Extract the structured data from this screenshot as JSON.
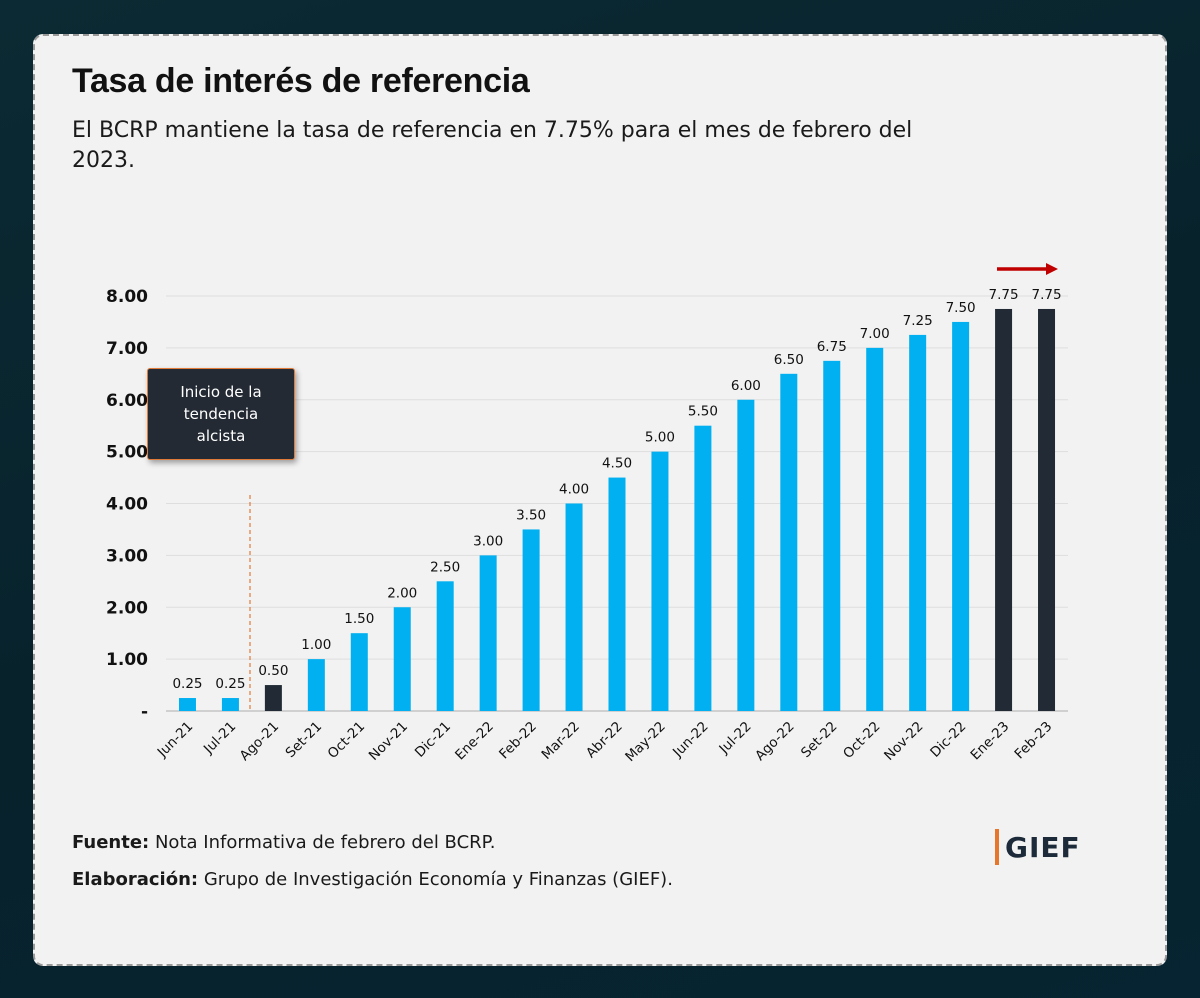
{
  "title": "Tasa de interés de referencia",
  "subtitle": "El BCRP mantiene la tasa de referencia en 7.75% para el mes de febrero del 2023.",
  "callout": {
    "lines": [
      "Inicio de la",
      "tendencia",
      "alcista"
    ]
  },
  "footer": {
    "source_label": "Fuente:",
    "source_text": " Nota Informativa de febrero del BCRP.",
    "credit_label": "Elaboración:",
    "credit_text": " Grupo de Investigación Economía y Finanzas (GIEF)."
  },
  "logo": {
    "text": "GIEF"
  },
  "colors": {
    "bar_blue": "#00b0f0",
    "bar_dark": "#222a35",
    "arrow": "#c00000",
    "callout_border": "#e07b3a"
  },
  "chart_data": {
    "type": "bar",
    "categories": [
      "Jun-21",
      "Jul-21",
      "Ago-21",
      "Set-21",
      "Oct-21",
      "Nov-21",
      "Dic-21",
      "Ene-22",
      "Feb-22",
      "Mar-22",
      "Abr-22",
      "May-22",
      "Jun-22",
      "Jul-22",
      "Ago-22",
      "Set-22",
      "Oct-22",
      "Nov-22",
      "Dic-22",
      "Ene-23",
      "Feb-23"
    ],
    "values": [
      0.25,
      0.25,
      0.5,
      1.0,
      1.5,
      2.0,
      2.5,
      3.0,
      3.5,
      4.0,
      4.5,
      5.0,
      5.5,
      6.0,
      6.5,
      6.75,
      7.0,
      7.25,
      7.5,
      7.75,
      7.75
    ],
    "value_labels": [
      "0.25",
      "0.25",
      "0.50",
      "1.00",
      "1.50",
      "2.00",
      "2.50",
      "3.00",
      "3.50",
      "4.00",
      "4.50",
      "5.00",
      "5.50",
      "6.00",
      "6.50",
      "6.75",
      "7.00",
      "7.25",
      "7.50",
      "7.75",
      "7.75"
    ],
    "dark_bars": [
      "Ago-21",
      "Ene-23",
      "Feb-23"
    ],
    "yticks": [
      "-",
      "1.00",
      "2.00",
      "3.00",
      "4.00",
      "5.00",
      "6.00",
      "7.00",
      "8.00"
    ],
    "ylim": [
      0,
      8
    ],
    "grid": true,
    "xlabel": "",
    "ylabel": ""
  }
}
